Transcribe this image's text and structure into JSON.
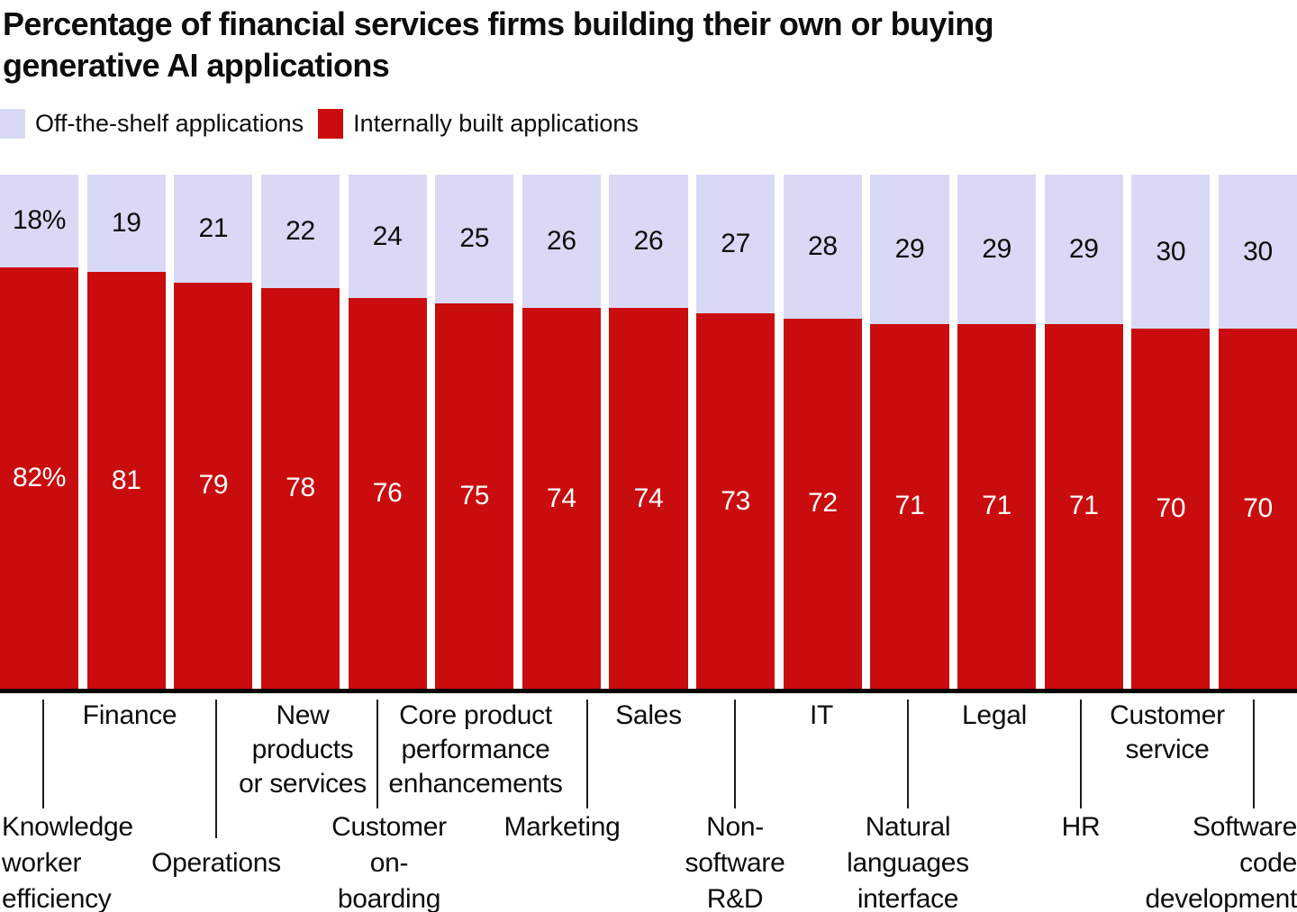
{
  "title": "Percentage of financial services firms building their own or buying\ngenerative AI applications",
  "colors": {
    "off_the_shelf": "#d9d9f6",
    "internally_built": "#c90d0e",
    "axis": "#000000",
    "text": "#0d0d0d",
    "background": "#ffffff"
  },
  "legend": {
    "position": "top-left",
    "items": [
      {
        "label": "Off-the-shelf applications",
        "color": "#d9d9f6"
      },
      {
        "label": "Internally built applications",
        "color": "#c90d0e"
      }
    ]
  },
  "chart_data": {
    "type": "bar",
    "stacked": true,
    "orientation": "vertical",
    "unit": "percent",
    "ylim": [
      0,
      100
    ],
    "grid": false,
    "title": "Percentage of financial services firms building their own or buying generative AI applications",
    "xlabel": "",
    "ylabel": "",
    "categories": [
      "Knowledge worker efficiency",
      "Finance",
      "Operations",
      "New products or services",
      "Customer on-boarding",
      "Core product performance enhancements",
      "Marketing",
      "Sales",
      "Non-software R&D",
      "IT",
      "Natural languages interface",
      "Legal",
      "HR",
      "Customer service",
      "Software code development"
    ],
    "series": [
      {
        "name": "Off-the-shelf applications",
        "color": "#d9d9f6",
        "values": [
          18,
          19,
          21,
          22,
          24,
          25,
          26,
          26,
          27,
          28,
          29,
          29,
          29,
          30,
          30
        ],
        "labels": [
          "18%",
          "19",
          "21",
          "22",
          "24",
          "25",
          "26",
          "26",
          "27",
          "28",
          "29",
          "29",
          "29",
          "30",
          "30"
        ]
      },
      {
        "name": "Internally built applications",
        "color": "#c90d0e",
        "values": [
          82,
          81,
          79,
          78,
          76,
          75,
          74,
          74,
          73,
          72,
          71,
          71,
          71,
          70,
          70
        ],
        "labels": [
          "82%",
          "81",
          "79",
          "78",
          "76",
          "75",
          "74",
          "74",
          "73",
          "72",
          "71",
          "71",
          "71",
          "70",
          "70"
        ]
      }
    ],
    "axis_labels": {
      "upper_row": [
        {
          "bar": 1,
          "text": "Finance",
          "align": "center"
        },
        {
          "bar": 3,
          "text": "New\nproducts\nor services",
          "align": "center"
        },
        {
          "bar": 5,
          "text": "Core product\nperformance\nenhancements",
          "align": "center"
        },
        {
          "bar": 7,
          "text": "Sales",
          "align": "center"
        },
        {
          "bar": 9,
          "text": "IT",
          "align": "center"
        },
        {
          "bar": 11,
          "text": "Legal",
          "align": "center"
        },
        {
          "bar": 13,
          "text": "Customer\nservice",
          "align": "center"
        }
      ],
      "lower_row": [
        {
          "bar": 0,
          "text": "Knowledge\nworker\nefficiency",
          "align": "left",
          "row": 0
        },
        {
          "bar": 2,
          "text": "Operations",
          "align": "center",
          "row": 1
        },
        {
          "bar": 4,
          "text": "Customer\non-\nboarding",
          "align": "center",
          "row": 0
        },
        {
          "bar": 6,
          "text": "Marketing",
          "align": "center",
          "row": 0
        },
        {
          "bar": 8,
          "text": "Non-\nsoftware\nR&D",
          "align": "center",
          "row": 0
        },
        {
          "bar": 10,
          "text": "Natural\nlanguages\ninterface",
          "align": "center",
          "row": 0
        },
        {
          "bar": 12,
          "text": "HR",
          "align": "center",
          "row": 0
        },
        {
          "bar": 14,
          "text": "Software\ncode\ndevelopment",
          "align": "right",
          "row": 0
        }
      ]
    }
  }
}
